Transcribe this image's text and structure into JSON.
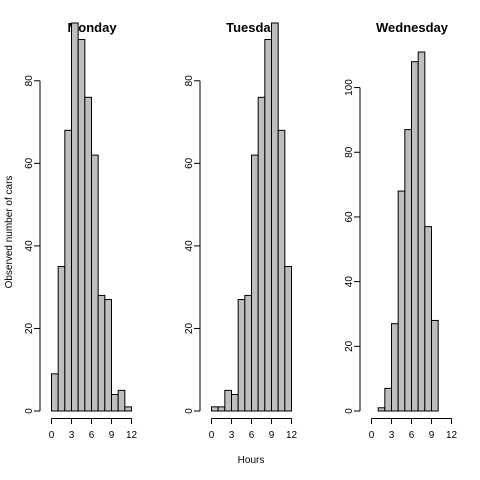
{
  "figure": {
    "ylabel": "Observed number of cars",
    "xlabel": "Hours"
  },
  "chart_data": [
    {
      "type": "bar",
      "title": "Monday",
      "bin_edges": [
        0,
        1,
        2,
        3,
        4,
        5,
        6,
        7,
        8,
        9,
        10,
        11,
        12
      ],
      "values": [
        9,
        35,
        68,
        94,
        90,
        76,
        62,
        28,
        27,
        4,
        5,
        1,
        1
      ],
      "xticks": [
        0,
        3,
        6,
        9,
        12
      ],
      "yticks": [
        0,
        20,
        40,
        60,
        80
      ],
      "xlim": [
        0,
        12
      ],
      "ylim": [
        0,
        94
      ]
    },
    {
      "type": "bar",
      "title": "Tuesday",
      "bin_edges": [
        0,
        1,
        2,
        3,
        4,
        5,
        6,
        7,
        8,
        9,
        10,
        11,
        12
      ],
      "values": [
        1,
        1,
        5,
        4,
        27,
        28,
        62,
        76,
        90,
        94,
        68,
        35,
        9
      ],
      "xticks": [
        0,
        3,
        6,
        9,
        12
      ],
      "yticks": [
        0,
        20,
        40,
        60,
        80
      ],
      "xlim": [
        0,
        12
      ],
      "ylim": [
        0,
        94
      ]
    },
    {
      "type": "bar",
      "title": "Wednesday",
      "bin_edges": [
        0,
        1,
        2,
        3,
        4,
        5,
        6,
        7,
        8,
        9,
        10
      ],
      "values": [
        0,
        1,
        7,
        27,
        68,
        87,
        108,
        111,
        57,
        28,
        6
      ],
      "xticks": [
        0,
        3,
        6,
        9,
        12
      ],
      "yticks": [
        0,
        20,
        40,
        60,
        80,
        100
      ],
      "xlim": [
        0,
        12
      ],
      "ylim": [
        0,
        111
      ]
    }
  ]
}
